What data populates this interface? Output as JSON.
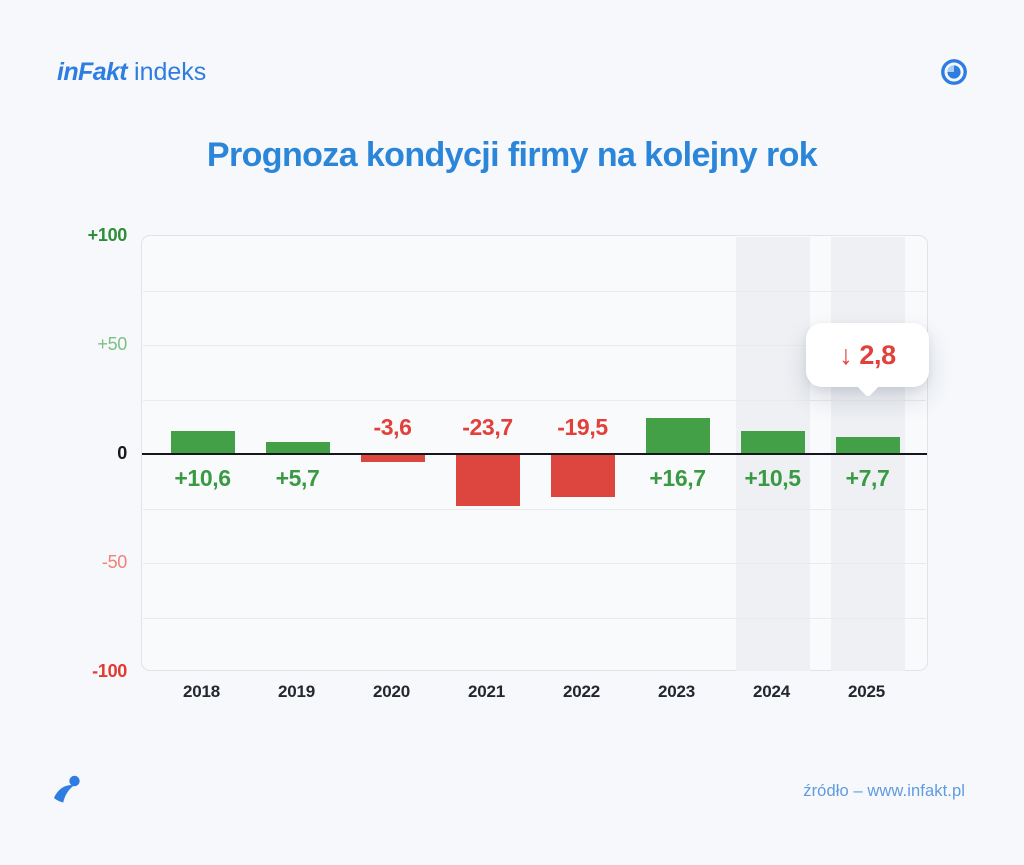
{
  "header": {
    "logo_primary": "inFakt",
    "logo_secondary": "indeks",
    "target_icon": "pie-target-icon"
  },
  "title": "Prognoza kondycji firmy na kolejny rok",
  "chart_data": {
    "type": "bar",
    "title": "Prognoza kondycji firmy na kolejny rok",
    "categories": [
      "2018",
      "2019",
      "2020",
      "2021",
      "2022",
      "2023",
      "2024",
      "2025"
    ],
    "values": [
      10.6,
      5.7,
      -3.6,
      -23.7,
      -19.5,
      16.7,
      10.5,
      7.7
    ],
    "value_labels": [
      "+10,6",
      "+5,7",
      "-3,6",
      "-23,7",
      "-19,5",
      "+16,7",
      "+10,5",
      "+7,7"
    ],
    "ylim": [
      -100,
      100
    ],
    "grid": true,
    "grid_interval": 25,
    "y_ticks": [
      {
        "label": "+100",
        "value": 100,
        "color": "#2e8d38",
        "weight": "bold"
      },
      {
        "label": "+50",
        "value": 50,
        "color": "#7fbe85",
        "weight": "normal"
      },
      {
        "label": "0",
        "value": 0,
        "color": "#17191e",
        "weight": "bold"
      },
      {
        "label": "-50",
        "value": -50,
        "color": "#ef837b",
        "weight": "normal"
      },
      {
        "label": "-100",
        "value": -100,
        "color": "#e23a31",
        "weight": "bold"
      }
    ],
    "highlighted_categories": [
      "2024",
      "2025"
    ],
    "annotation": {
      "arrow": "↓",
      "text": "2,8",
      "category": "2025",
      "color": "#e2403a"
    },
    "colors": {
      "positive_bar": "#43a047",
      "negative_bar": "#dd453f",
      "positive_label": "#3a9a43",
      "negative_label": "#e2403a",
      "zero_line": "#15171c",
      "grid_line": "#e8eaee",
      "highlight_band": "#eef0f3",
      "plot_bg": "#f9fafc",
      "plot_border": "#e0e3e9",
      "year_label": "#23272f"
    }
  },
  "footer": {
    "source": "źródło – www.infakt.pl",
    "bird_icon": "infakt-bird-icon"
  },
  "theme": {
    "page_bg": "#f6f8fb",
    "brand_blue": "#2e7de1",
    "title_blue": "#2b86da",
    "source_blue": "#5f9be0"
  }
}
